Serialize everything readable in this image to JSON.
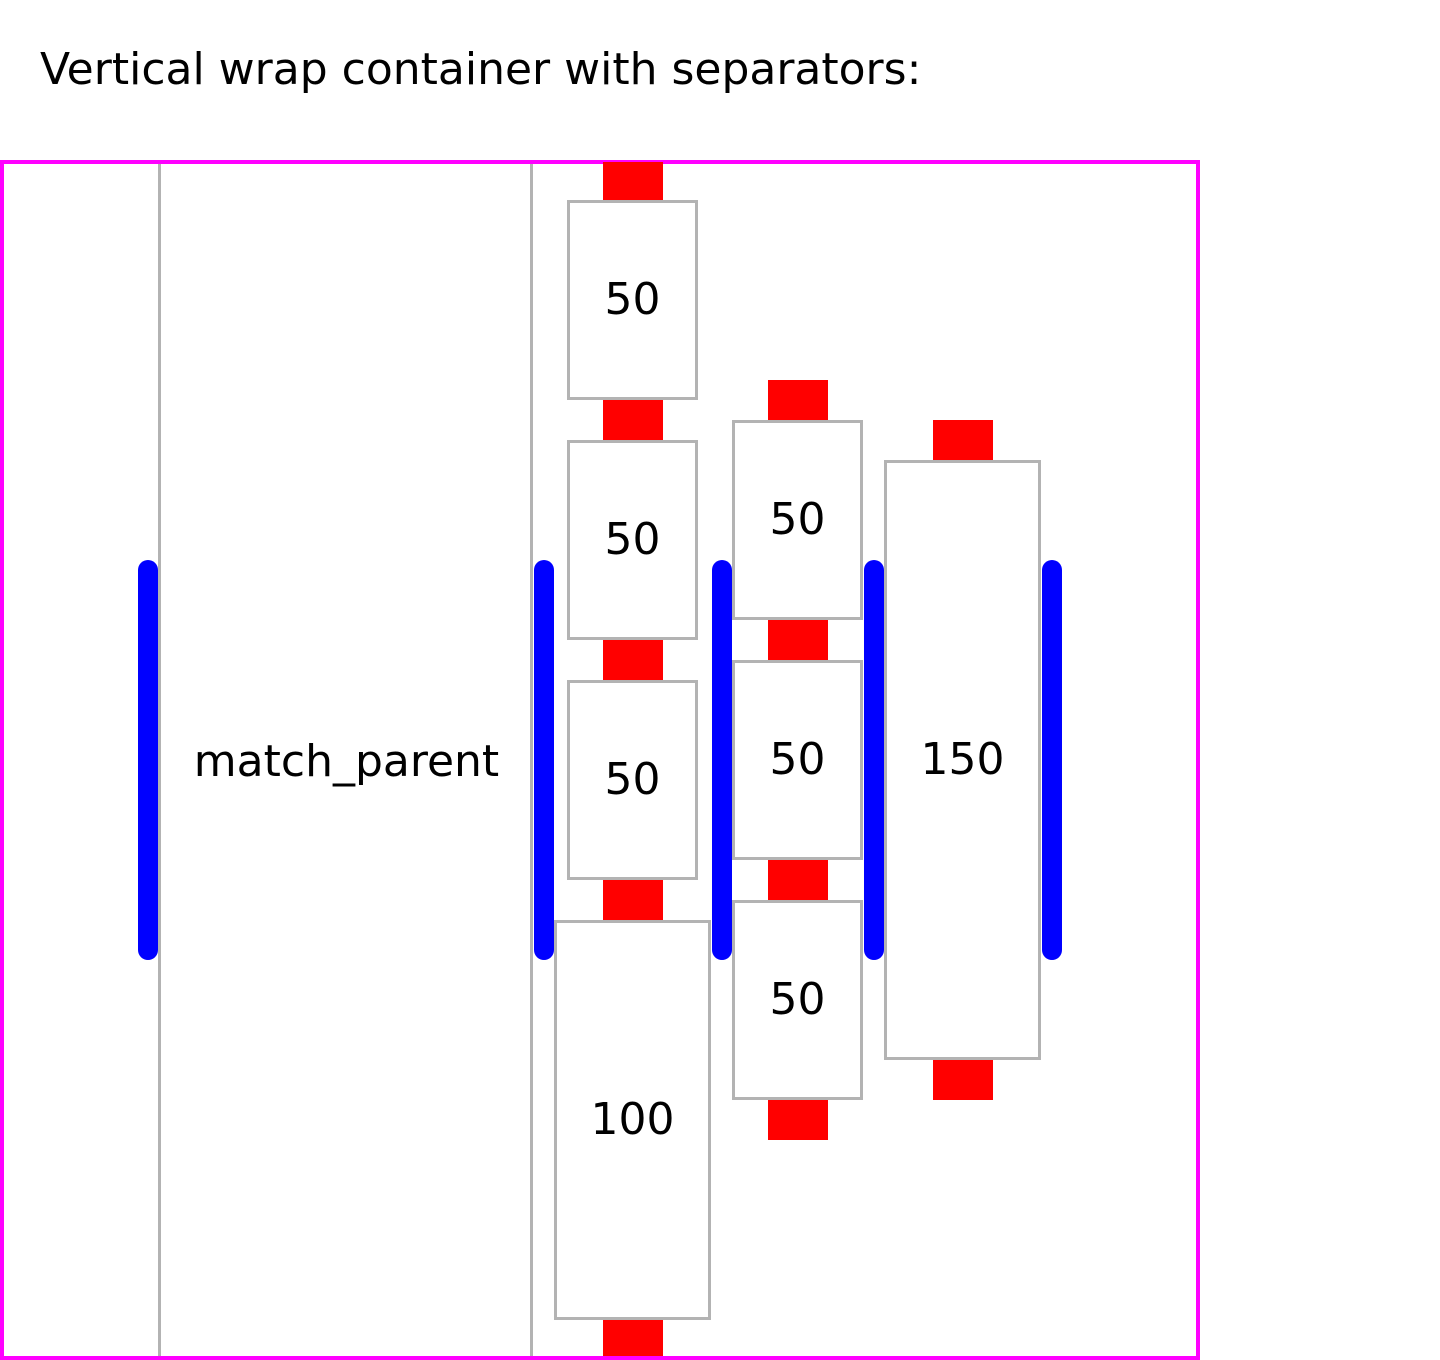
{
  "title": "Vertical wrap container with separators:",
  "colors": {
    "container_border": "#ff00ff",
    "item_border": "#b3b3b3",
    "margin_marker": "#ff0000",
    "separator": "#0000ff"
  },
  "match_parent_label": "match_parent",
  "columns": [
    {
      "items": [
        "50",
        "50",
        "50",
        "100"
      ]
    },
    {
      "items": [
        "50",
        "50",
        "50"
      ]
    },
    {
      "items": [
        "150"
      ]
    }
  ]
}
